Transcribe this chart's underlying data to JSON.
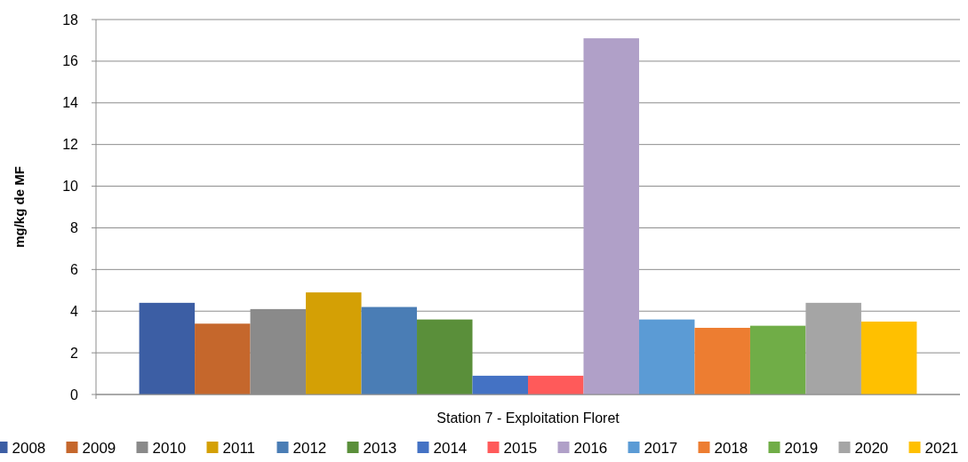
{
  "chart_data": {
    "type": "bar",
    "categories": [
      "Station 7 - Exploitation Floret"
    ],
    "ylabel": "mg/kg de MF",
    "ylim": [
      0,
      18
    ],
    "yticks": [
      0,
      2,
      4,
      6,
      8,
      10,
      12,
      14,
      16,
      18
    ],
    "grid": "y",
    "legend": "bottom",
    "series": [
      {
        "name": "2008",
        "color": "#3c5ea4",
        "values": [
          4.4
        ]
      },
      {
        "name": "2009",
        "color": "#c5672c",
        "values": [
          3.4
        ]
      },
      {
        "name": "2010",
        "color": "#8a8a8a",
        "values": [
          4.1
        ]
      },
      {
        "name": "2011",
        "color": "#d4a005",
        "values": [
          4.9
        ]
      },
      {
        "name": "2012",
        "color": "#4a7db5",
        "values": [
          4.2
        ]
      },
      {
        "name": "2013",
        "color": "#5a8f3a",
        "values": [
          3.6
        ]
      },
      {
        "name": "2014",
        "color": "#4472c4",
        "values": [
          0.9
        ]
      },
      {
        "name": "2015",
        "color": "#ff5a5a",
        "values": [
          0.9
        ]
      },
      {
        "name": "2016",
        "color": "#b0a0c8",
        "values": [
          17.1
        ]
      },
      {
        "name": "2017",
        "color": "#5b9bd5",
        "values": [
          3.6
        ]
      },
      {
        "name": "2018",
        "color": "#ed7d31",
        "values": [
          3.2
        ]
      },
      {
        "name": "2019",
        "color": "#70ad47",
        "values": [
          3.3
        ]
      },
      {
        "name": "2020",
        "color": "#a5a5a5",
        "values": [
          4.4
        ]
      },
      {
        "name": "2021",
        "color": "#ffc000",
        "values": [
          3.5
        ]
      }
    ]
  }
}
